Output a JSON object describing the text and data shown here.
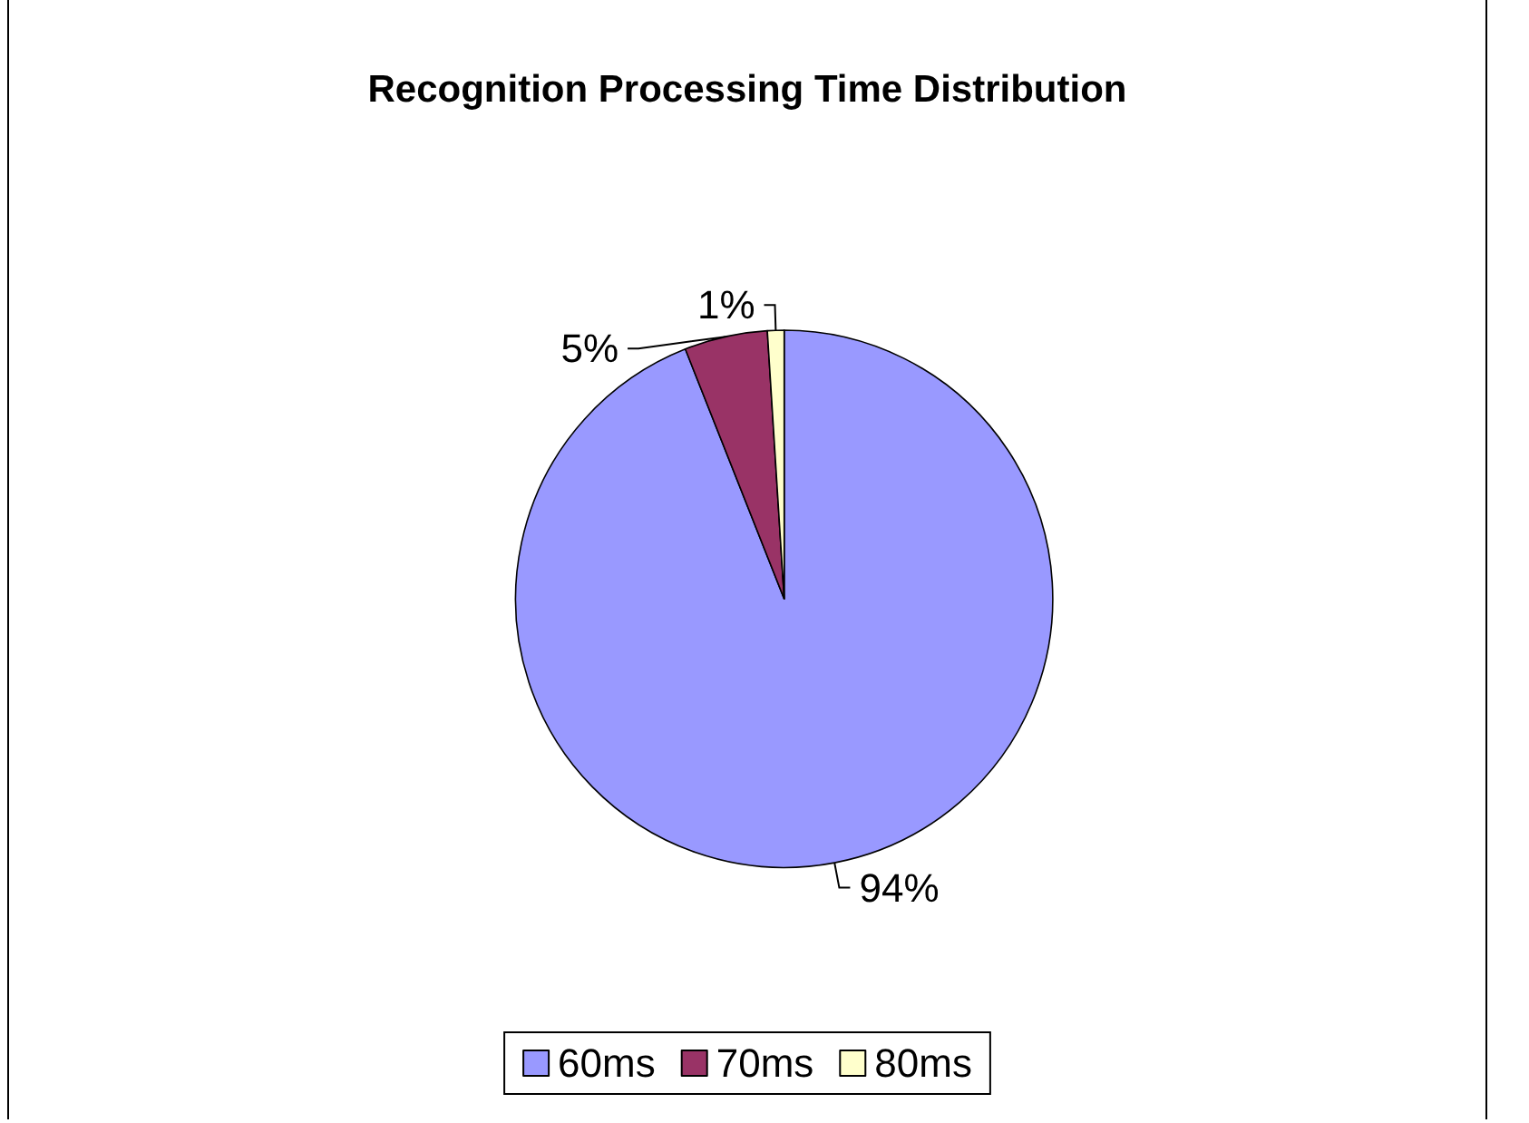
{
  "chart_data": {
    "type": "pie",
    "title": "Recognition Processing Time Distribution",
    "categories": [
      "60ms",
      "70ms",
      "80ms"
    ],
    "values": [
      94,
      5,
      1
    ],
    "colors": [
      "#9999ff",
      "#993366",
      "#ffffcc"
    ],
    "value_labels": [
      "94%",
      "5%",
      "1%"
    ],
    "legend": "bottom"
  }
}
